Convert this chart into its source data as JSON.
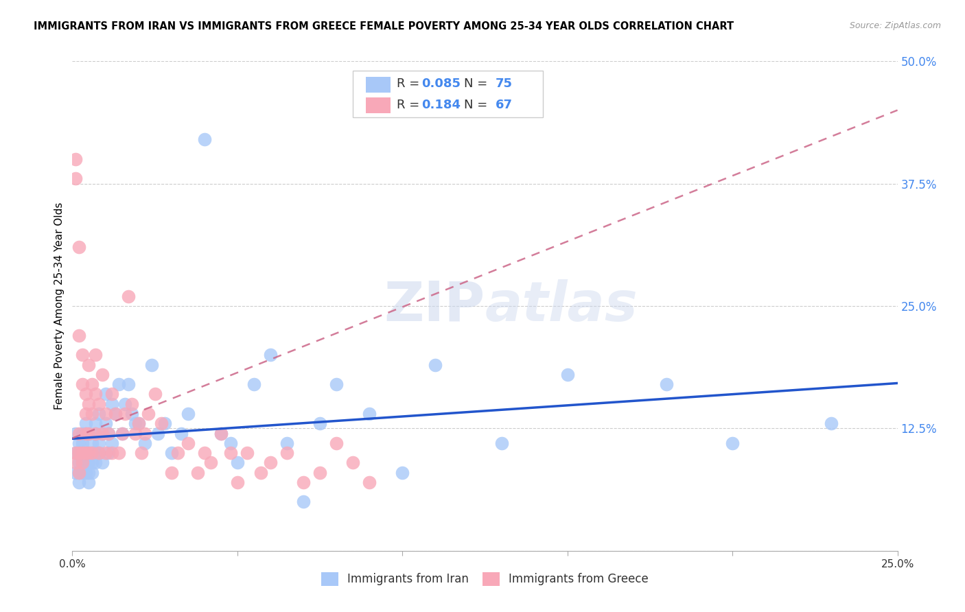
{
  "title": "IMMIGRANTS FROM IRAN VS IMMIGRANTS FROM GREECE FEMALE POVERTY AMONG 25-34 YEAR OLDS CORRELATION CHART",
  "source": "Source: ZipAtlas.com",
  "ylabel": "Female Poverty Among 25-34 Year Olds",
  "xlim": [
    0,
    0.25
  ],
  "ylim": [
    0,
    0.5
  ],
  "xticks": [
    0.0,
    0.05,
    0.1,
    0.15,
    0.2,
    0.25
  ],
  "xtick_labels": [
    "0.0%",
    "",
    "",
    "",
    "",
    "25.0%"
  ],
  "yticks": [
    0.0,
    0.125,
    0.25,
    0.375,
    0.5
  ],
  "ytick_labels": [
    "",
    "12.5%",
    "25.0%",
    "37.5%",
    "50.0%"
  ],
  "iran_R": 0.085,
  "iran_N": 75,
  "greece_R": 0.184,
  "greece_N": 67,
  "iran_color": "#a8c8f8",
  "greece_color": "#f8a8b8",
  "iran_line_color": "#2255cc",
  "greece_line_color": "#cc6688",
  "watermark": "ZIPatlas",
  "background_color": "#ffffff",
  "legend_label_color": "#333333",
  "legend_value_color": "#4488ee",
  "iran_x": [
    0.001,
    0.001,
    0.001,
    0.002,
    0.002,
    0.002,
    0.002,
    0.002,
    0.003,
    0.003,
    0.003,
    0.003,
    0.003,
    0.004,
    0.004,
    0.004,
    0.004,
    0.004,
    0.005,
    0.005,
    0.005,
    0.005,
    0.005,
    0.006,
    0.006,
    0.006,
    0.006,
    0.007,
    0.007,
    0.007,
    0.007,
    0.008,
    0.008,
    0.008,
    0.009,
    0.009,
    0.01,
    0.01,
    0.011,
    0.011,
    0.012,
    0.012,
    0.013,
    0.014,
    0.015,
    0.016,
    0.017,
    0.018,
    0.019,
    0.02,
    0.022,
    0.024,
    0.026,
    0.028,
    0.03,
    0.033,
    0.035,
    0.04,
    0.045,
    0.048,
    0.05,
    0.055,
    0.06,
    0.065,
    0.07,
    0.075,
    0.08,
    0.09,
    0.1,
    0.11,
    0.13,
    0.15,
    0.18,
    0.2,
    0.23
  ],
  "iran_y": [
    0.12,
    0.1,
    0.08,
    0.11,
    0.09,
    0.08,
    0.1,
    0.07,
    0.1,
    0.09,
    0.12,
    0.08,
    0.11,
    0.09,
    0.12,
    0.1,
    0.13,
    0.08,
    0.07,
    0.1,
    0.09,
    0.12,
    0.08,
    0.1,
    0.09,
    0.11,
    0.08,
    0.13,
    0.1,
    0.09,
    0.12,
    0.11,
    0.1,
    0.14,
    0.12,
    0.09,
    0.13,
    0.16,
    0.1,
    0.12,
    0.11,
    0.15,
    0.14,
    0.17,
    0.12,
    0.15,
    0.17,
    0.14,
    0.13,
    0.13,
    0.11,
    0.19,
    0.12,
    0.13,
    0.1,
    0.12,
    0.14,
    0.42,
    0.12,
    0.11,
    0.09,
    0.17,
    0.2,
    0.11,
    0.05,
    0.13,
    0.17,
    0.14,
    0.08,
    0.19,
    0.11,
    0.18,
    0.17,
    0.11,
    0.13
  ],
  "greece_x": [
    0.001,
    0.001,
    0.001,
    0.001,
    0.002,
    0.002,
    0.002,
    0.002,
    0.002,
    0.003,
    0.003,
    0.003,
    0.003,
    0.004,
    0.004,
    0.004,
    0.004,
    0.005,
    0.005,
    0.005,
    0.005,
    0.006,
    0.006,
    0.006,
    0.007,
    0.007,
    0.007,
    0.008,
    0.008,
    0.009,
    0.009,
    0.01,
    0.01,
    0.011,
    0.012,
    0.012,
    0.013,
    0.014,
    0.015,
    0.016,
    0.017,
    0.018,
    0.019,
    0.02,
    0.021,
    0.022,
    0.023,
    0.025,
    0.027,
    0.03,
    0.032,
    0.035,
    0.038,
    0.04,
    0.042,
    0.045,
    0.048,
    0.05,
    0.053,
    0.057,
    0.06,
    0.065,
    0.07,
    0.075,
    0.08,
    0.085,
    0.09
  ],
  "greece_y": [
    0.4,
    0.38,
    0.1,
    0.09,
    0.31,
    0.22,
    0.12,
    0.1,
    0.08,
    0.2,
    0.17,
    0.1,
    0.09,
    0.16,
    0.14,
    0.12,
    0.1,
    0.19,
    0.15,
    0.12,
    0.1,
    0.17,
    0.14,
    0.1,
    0.2,
    0.16,
    0.12,
    0.15,
    0.1,
    0.18,
    0.12,
    0.14,
    0.1,
    0.12,
    0.16,
    0.1,
    0.14,
    0.1,
    0.12,
    0.14,
    0.26,
    0.15,
    0.12,
    0.13,
    0.1,
    0.12,
    0.14,
    0.16,
    0.13,
    0.08,
    0.1,
    0.11,
    0.08,
    0.1,
    0.09,
    0.12,
    0.1,
    0.07,
    0.1,
    0.08,
    0.09,
    0.1,
    0.07,
    0.08,
    0.11,
    0.09,
    0.07
  ],
  "greece_trend_x": [
    0.0,
    0.25
  ],
  "greece_trend_y": [
    0.115,
    0.45
  ]
}
